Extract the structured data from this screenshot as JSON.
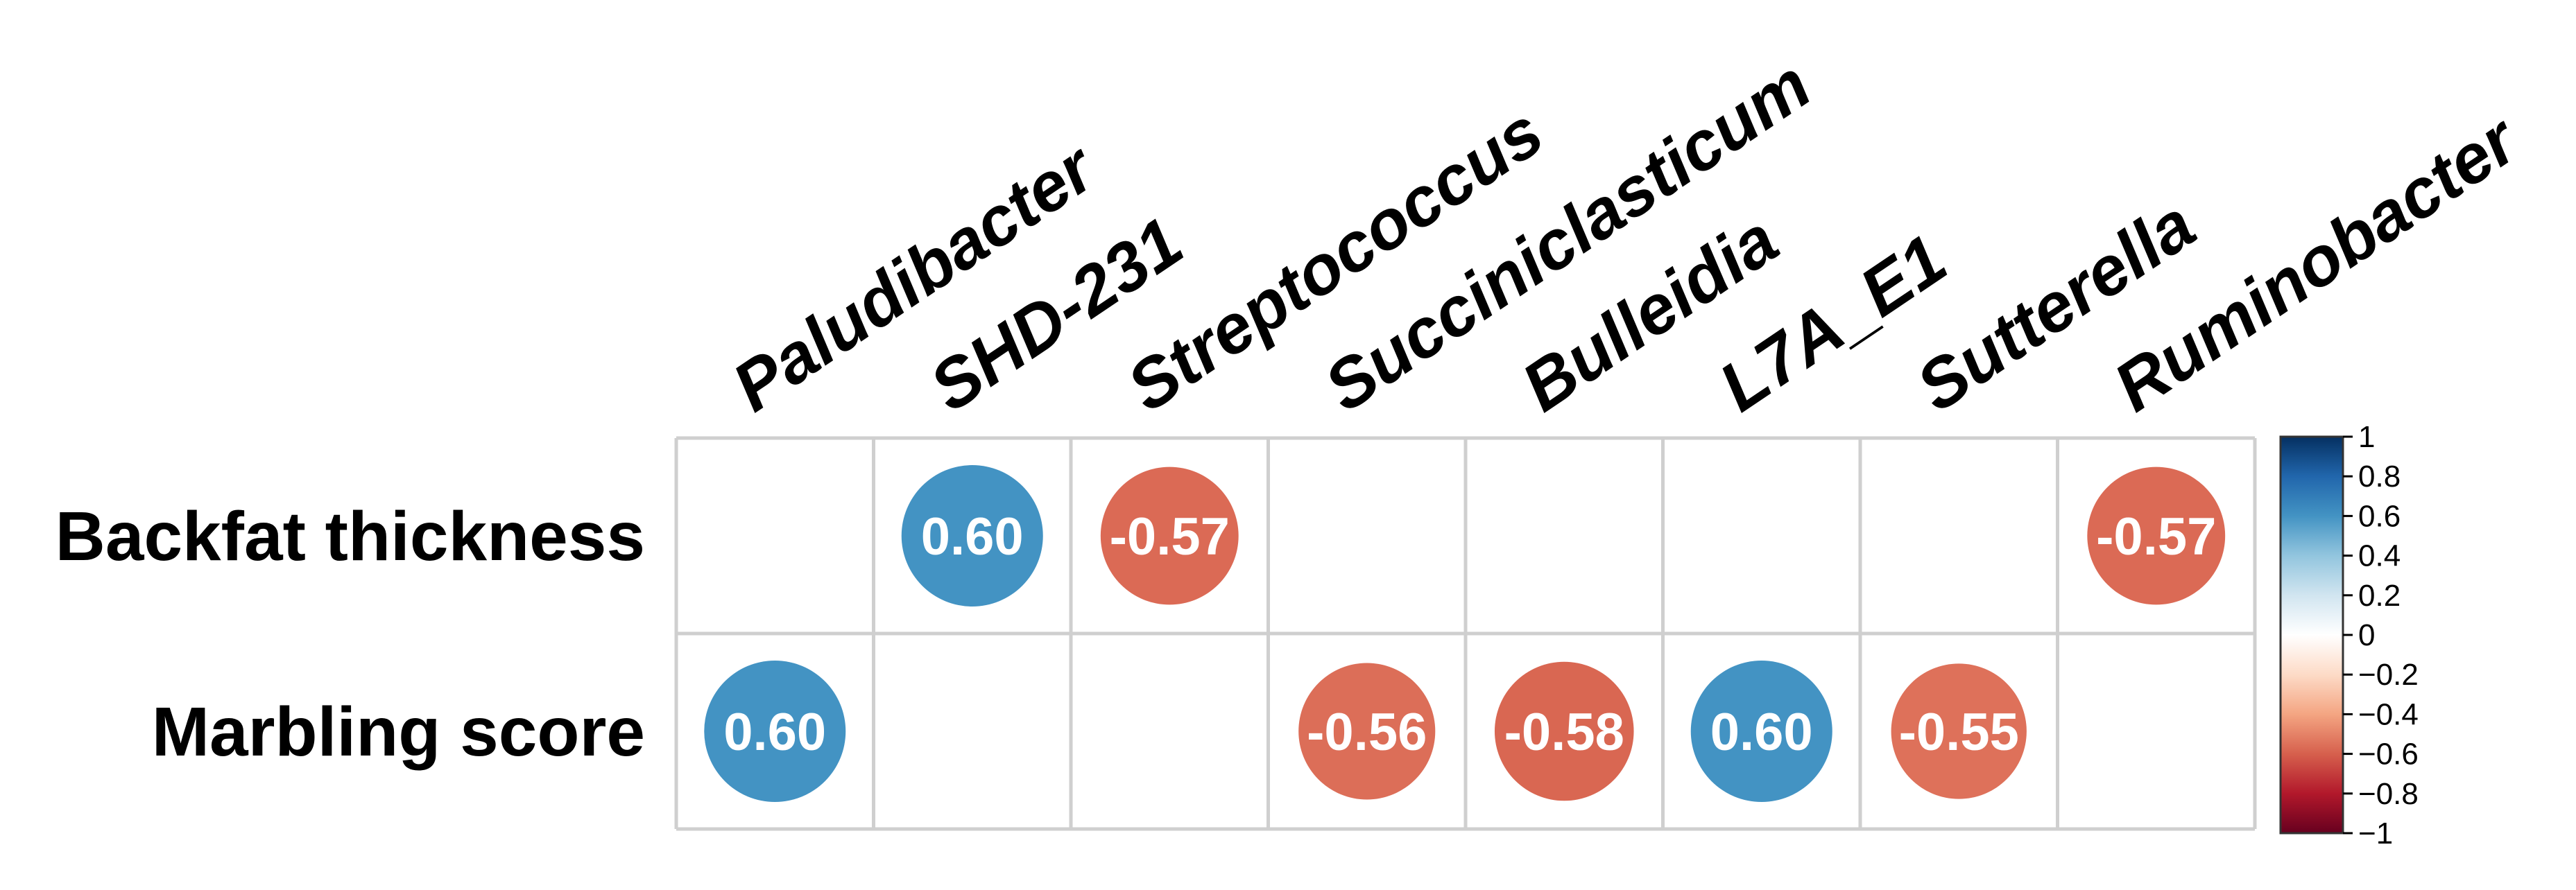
{
  "chart_data": {
    "type": "heatmap",
    "style": "correlation-circle",
    "columns": [
      "Paludibacter",
      "SHD-231",
      "Streptococcus",
      "Succiniclasticum",
      "Bulleidia",
      "L7A_E1",
      "Sutterella",
      "Ruminobacter"
    ],
    "rows": [
      "Backfat thickness",
      "Marbling score"
    ],
    "cells": [
      [
        null,
        0.6,
        -0.57,
        null,
        null,
        null,
        null,
        -0.57
      ],
      [
        0.6,
        null,
        null,
        -0.56,
        -0.58,
        0.6,
        -0.55,
        null
      ]
    ],
    "value_labels": [
      [
        null,
        "0.60",
        "-0.57",
        null,
        null,
        null,
        null,
        "-0.57"
      ],
      [
        "0.60",
        null,
        null,
        "-0.56",
        "-0.58",
        "0.60",
        "-0.55",
        null
      ]
    ],
    "colorbar": {
      "range": [
        -1,
        1
      ],
      "ticks": [
        "1",
        "0.8",
        "0.6",
        "0.4",
        "0.2",
        "0",
        "−0.2",
        "−0.4",
        "−0.6",
        "−0.8",
        "−1"
      ],
      "tick_values": [
        1,
        0.8,
        0.6,
        0.4,
        0.2,
        0,
        -0.2,
        -0.4,
        -0.6,
        -0.8,
        -1
      ],
      "colors": [
        "#67001f",
        "#b2182b",
        "#d6604d",
        "#f4a582",
        "#fddbc7",
        "#ffffff",
        "#d1e5f0",
        "#92c5de",
        "#4393c3",
        "#2166ac",
        "#053061"
      ]
    },
    "grid": true
  }
}
